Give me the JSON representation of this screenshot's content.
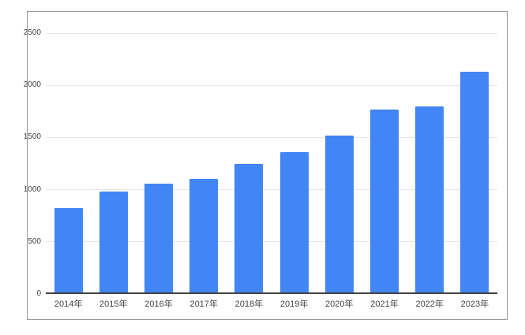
{
  "chart_data": {
    "type": "bar",
    "title": "",
    "categories": [
      "2014年",
      "2015年",
      "2016年",
      "2017年",
      "2018年",
      "2019年",
      "2020年",
      "2021年",
      "2022年",
      "2023年"
    ],
    "values": [
      820,
      980,
      1060,
      1100,
      1250,
      1360,
      1520,
      1770,
      1800,
      2130
    ],
    "xlabel": "",
    "ylabel": "",
    "ylim": [
      0,
      2500
    ],
    "ytick_step": 500,
    "ytick_labels": [
      "0",
      "500",
      "1000",
      "1500",
      "2000",
      "2500"
    ],
    "grid": true,
    "legend_position": "none",
    "colors": {
      "bar": "#4285f4",
      "gridline": "#e6e6e6",
      "axis_baseline": "#424242",
      "tick_label": "#424242",
      "chart_border": "#949494",
      "background": "#ffffff"
    }
  }
}
